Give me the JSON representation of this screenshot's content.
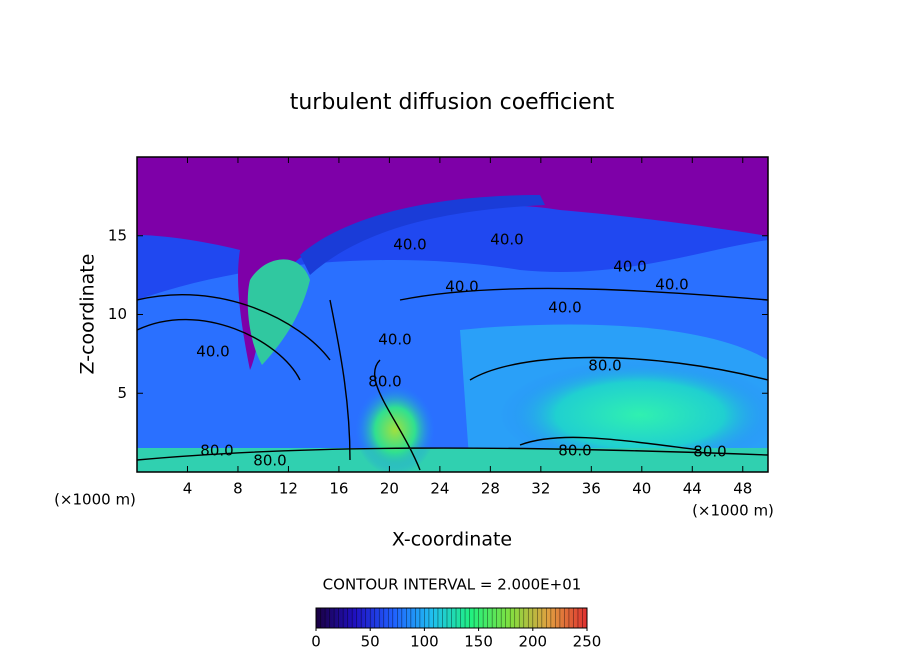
{
  "chart_data": {
    "type": "contour",
    "title": "turbulent diffusion coefficient",
    "x_label": "X-coordinate",
    "y_label": "Z-coordinate",
    "x_unit": "(×1000 m)",
    "y_unit": "(×1000 m)",
    "xlim": [
      0,
      50
    ],
    "xticks": [
      4,
      8,
      12,
      16,
      20,
      24,
      28,
      32,
      36,
      40,
      44,
      48
    ],
    "ylim": [
      0,
      20
    ],
    "yticks": [
      5,
      10,
      15
    ],
    "contour_interval_label": "CONTOUR INTERVAL = 2.000E+01",
    "contour_labels": [
      "80.0",
      "80.0",
      "80.0",
      "80.0",
      "80.0",
      "80.0",
      "40.0",
      "40.0",
      "40.0",
      "40.0",
      "40.0",
      "40.0",
      "40.0",
      "40.0"
    ],
    "colorbar": {
      "range": [
        0,
        250
      ],
      "ticks": [
        0,
        50,
        100,
        150,
        200,
        250
      ],
      "colors": [
        "#1a0040",
        "#2010c0",
        "#2060ff",
        "#20c0f0",
        "#20f080",
        "#80e040",
        "#e0a040",
        "#e03030"
      ]
    }
  }
}
